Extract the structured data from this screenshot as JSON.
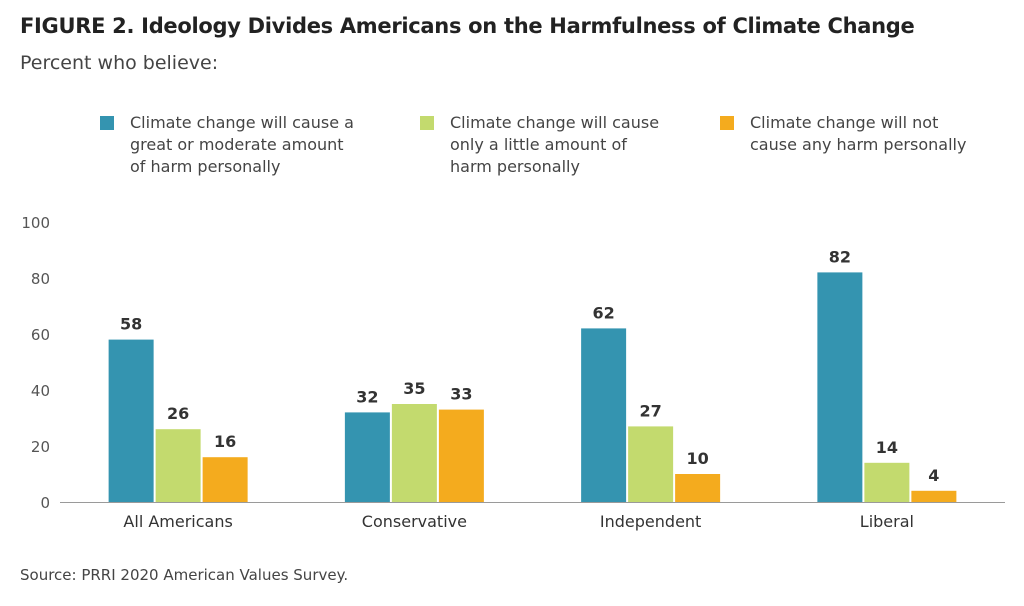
{
  "chart_data": {
    "type": "bar",
    "title": "FIGURE 2. Ideology Divides Americans on the Harmfulness of Climate Change",
    "subtitle": "Percent who believe:",
    "categories": [
      "All Americans",
      "Conservative",
      "Independent",
      "Liberal"
    ],
    "series": [
      {
        "name": "Climate change will cause a great or moderate amount of harm personally",
        "name_lines": [
          "Climate change will cause a",
          "great or moderate amount",
          "of harm personally"
        ],
        "color": "#3494b0",
        "values": [
          58,
          32,
          62,
          82
        ]
      },
      {
        "name": "Climate change will cause only a little amount of harm personally",
        "name_lines": [
          "Climate change will cause",
          "only a little amount of",
          "harm personally"
        ],
        "color": "#c3da6e",
        "values": [
          26,
          35,
          27,
          14
        ]
      },
      {
        "name": "Climate change will not cause any harm personally",
        "name_lines": [
          "Climate change will not",
          "cause any harm personally"
        ],
        "color": "#f4ab1e",
        "values": [
          16,
          33,
          10,
          4
        ]
      }
    ],
    "ylim": [
      0,
      100
    ],
    "yticks": [
      0,
      20,
      40,
      60,
      80,
      100
    ],
    "xlabel": "",
    "ylabel": "",
    "grid": false,
    "legend": "top"
  },
  "source": "Source: PRRI 2020 American Values Survey."
}
